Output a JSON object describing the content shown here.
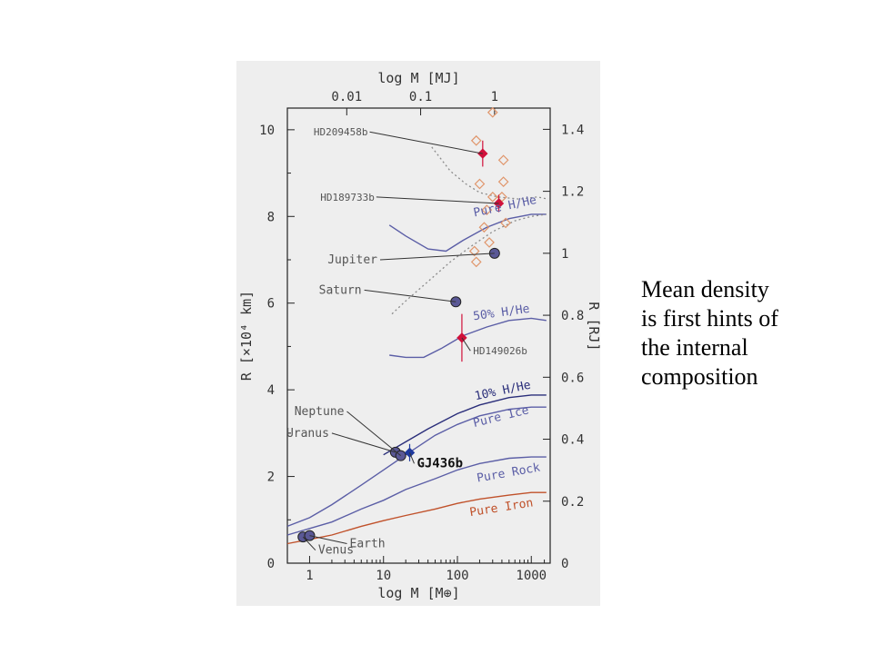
{
  "caption": {
    "lines": [
      "Mean density",
      "is first hints of",
      "the internal",
      "composition"
    ]
  },
  "colors": {
    "panel_bg": "#eeeeee",
    "axis": "#222222",
    "model_blue": "#5b5ea6",
    "model_dark_blue": "#2a2e7a",
    "iron": "#c0512a",
    "planet_marker": "#5a5896",
    "exoplanet_red": "#d0103a",
    "exoplanet_blue": "#1f3a9e",
    "hollow_diamond": "#e0956a",
    "dotted": "#8a8a8a"
  },
  "chart_data": {
    "type": "line",
    "xlabel": "log M [M⊕]",
    "xlabel_top": "log M [MJ]",
    "ylabel": "R [×10⁴ km]",
    "ylabel_right": "R [RJ]",
    "x_scale": "log",
    "xlim": [
      0.5,
      1800
    ],
    "ylim": [
      0,
      10.5
    ],
    "x_ticks": [
      {
        "value": 1,
        "label": "1"
      },
      {
        "value": 10,
        "label": "10"
      },
      {
        "value": 100,
        "label": "100"
      },
      {
        "value": 1000,
        "label": "1000"
      }
    ],
    "x_ticks_top": [
      {
        "value": 3.18,
        "label": "0.01"
      },
      {
        "value": 31.8,
        "label": "0.1"
      },
      {
        "value": 318,
        "label": "1"
      }
    ],
    "y_ticks": [
      {
        "value": 0,
        "label": "0"
      },
      {
        "value": 2,
        "label": "2"
      },
      {
        "value": 4,
        "label": "4"
      },
      {
        "value": 6,
        "label": "6"
      },
      {
        "value": 8,
        "label": "8"
      },
      {
        "value": 10,
        "label": "10"
      }
    ],
    "y_ticks_right": [
      {
        "value": 0,
        "label": "0"
      },
      {
        "value": 1.43,
        "label": "0.2"
      },
      {
        "value": 2.86,
        "label": "0.4"
      },
      {
        "value": 4.29,
        "label": "0.6"
      },
      {
        "value": 5.72,
        "label": "0.8"
      },
      {
        "value": 7.15,
        "label": "1"
      },
      {
        "value": 8.58,
        "label": "1.2"
      },
      {
        "value": 10.01,
        "label": "1.4"
      }
    ],
    "series": [
      {
        "name": "Pure H/He",
        "style": "solid",
        "color": "#5b5ea6",
        "points": [
          [
            12,
            7.8
          ],
          [
            20,
            7.55
          ],
          [
            40,
            7.25
          ],
          [
            70,
            7.2
          ],
          [
            120,
            7.45
          ],
          [
            250,
            7.75
          ],
          [
            500,
            7.95
          ],
          [
            1000,
            8.05
          ],
          [
            1600,
            8.05
          ]
        ]
      },
      {
        "name": "50% H/He",
        "style": "solid",
        "color": "#5b5ea6",
        "points": [
          [
            12,
            4.8
          ],
          [
            20,
            4.75
          ],
          [
            35,
            4.75
          ],
          [
            60,
            4.95
          ],
          [
            120,
            5.25
          ],
          [
            250,
            5.45
          ],
          [
            500,
            5.6
          ],
          [
            1000,
            5.65
          ],
          [
            1600,
            5.6
          ]
        ]
      },
      {
        "name": "10% H/He",
        "style": "solid",
        "color": "#2a2e7a",
        "points": [
          [
            10,
            2.5
          ],
          [
            20,
            2.8
          ],
          [
            40,
            3.1
          ],
          [
            100,
            3.45
          ],
          [
            200,
            3.65
          ],
          [
            500,
            3.82
          ],
          [
            1000,
            3.88
          ],
          [
            1600,
            3.88
          ]
        ]
      },
      {
        "name": "Pure Ice",
        "style": "solid",
        "color": "#5b5ea6",
        "points": [
          [
            0.5,
            0.85
          ],
          [
            1,
            1.05
          ],
          [
            2,
            1.35
          ],
          [
            5,
            1.8
          ],
          [
            10,
            2.15
          ],
          [
            20,
            2.5
          ],
          [
            50,
            2.95
          ],
          [
            100,
            3.2
          ],
          [
            200,
            3.4
          ],
          [
            500,
            3.55
          ],
          [
            1000,
            3.6
          ],
          [
            1600,
            3.6
          ]
        ]
      },
      {
        "name": "Pure Rock",
        "style": "solid",
        "color": "#5b5ea6",
        "points": [
          [
            0.5,
            0.65
          ],
          [
            1,
            0.8
          ],
          [
            2,
            0.95
          ],
          [
            5,
            1.25
          ],
          [
            10,
            1.45
          ],
          [
            20,
            1.7
          ],
          [
            50,
            1.95
          ],
          [
            100,
            2.15
          ],
          [
            200,
            2.3
          ],
          [
            500,
            2.42
          ],
          [
            1000,
            2.45
          ],
          [
            1600,
            2.45
          ]
        ]
      },
      {
        "name": "Pure Iron",
        "style": "solid",
        "color": "#c0512a",
        "points": [
          [
            0.5,
            0.45
          ],
          [
            1,
            0.55
          ],
          [
            2,
            0.65
          ],
          [
            5,
            0.85
          ],
          [
            10,
            0.98
          ],
          [
            20,
            1.1
          ],
          [
            50,
            1.25
          ],
          [
            100,
            1.38
          ],
          [
            200,
            1.48
          ],
          [
            500,
            1.57
          ],
          [
            1000,
            1.63
          ],
          [
            1600,
            1.63
          ]
        ]
      },
      {
        "name": "",
        "style": "dotted",
        "color": "#8a8a8a",
        "points": [
          [
            13,
            5.75
          ],
          [
            20,
            6.05
          ],
          [
            40,
            6.5
          ],
          [
            80,
            6.95
          ],
          [
            150,
            7.3
          ],
          [
            300,
            7.65
          ],
          [
            600,
            7.9
          ],
          [
            1000,
            8.0
          ],
          [
            1600,
            8.05
          ]
        ]
      },
      {
        "name": "",
        "style": "dotted",
        "color": "#8a8a8a",
        "points": [
          [
            45,
            9.6
          ],
          [
            80,
            9.05
          ],
          [
            130,
            8.75
          ],
          [
            200,
            8.55
          ],
          [
            350,
            8.45
          ],
          [
            700,
            8.4
          ],
          [
            1200,
            8.45
          ],
          [
            1700,
            8.4
          ]
        ]
      }
    ],
    "series_labels": [
      {
        "text": "Pure H/He",
        "x": 450,
        "y": 8.15,
        "color": "#5b5ea6",
        "rotate": -12
      },
      {
        "text": "50% H/He",
        "x": 400,
        "y": 5.7,
        "color": "#5b5ea6",
        "rotate": -8
      },
      {
        "text": "10% H/He",
        "x": 420,
        "y": 3.9,
        "color": "#2a2e7a",
        "rotate": -12
      },
      {
        "text": "Pure Ice",
        "x": 400,
        "y": 3.3,
        "color": "#5b5ea6",
        "rotate": -14
      },
      {
        "text": "Pure Rock",
        "x": 500,
        "y": 2.0,
        "color": "#5b5ea6",
        "rotate": -10
      },
      {
        "text": "Pure Iron",
        "x": 400,
        "y": 1.2,
        "color": "#c0512a",
        "rotate": -9
      }
    ],
    "planets": [
      {
        "name": "Venus",
        "mass": 0.815,
        "radius": 0.605,
        "label_x": 1.2,
        "label_y": 0.3
      },
      {
        "name": "Earth",
        "mass": 1.0,
        "radius": 0.637,
        "label_x": 3.2,
        "label_y": 0.45
      },
      {
        "name": "Uranus",
        "mass": 14.5,
        "radius": 2.56,
        "label_x": 2.0,
        "label_y": 3.0
      },
      {
        "name": "Neptune",
        "mass": 17.1,
        "radius": 2.48,
        "label_x": 3.2,
        "label_y": 3.5
      },
      {
        "name": "Saturn",
        "mass": 95.2,
        "radius": 6.03,
        "label_x": 5.5,
        "label_y": 6.3
      },
      {
        "name": "Jupiter",
        "mass": 318,
        "radius": 7.15,
        "label_x": 9.0,
        "label_y": 7.0
      }
    ],
    "exoplanets": [
      {
        "name": "HD209458b",
        "mass": 220,
        "radius": 9.45,
        "err": 0.3,
        "color": "#d0103a",
        "label_x": 6.5,
        "label_y": 9.95
      },
      {
        "name": "HD189733b",
        "mass": 363,
        "radius": 8.3,
        "err": 0.2,
        "color": "#d0103a",
        "label_x": 8.0,
        "label_y": 8.45
      },
      {
        "name": "HD149026b",
        "mass": 115,
        "radius": 5.2,
        "err": 0.55,
        "color": "#d0103a",
        "label_x": 150,
        "label_y": 4.9
      },
      {
        "name": "GJ436b",
        "mass": 22.6,
        "radius": 2.55,
        "err": 0.2,
        "color": "#1f3a9e",
        "label_x": 26,
        "label_y": 2.3
      }
    ],
    "hollow_points": [
      [
        300,
        10.4
      ],
      [
        180,
        9.75
      ],
      [
        420,
        9.3
      ],
      [
        420,
        8.8
      ],
      [
        200,
        8.75
      ],
      [
        300,
        8.45
      ],
      [
        400,
        8.45
      ],
      [
        250,
        8.15
      ],
      [
        450,
        7.85
      ],
      [
        230,
        7.75
      ],
      [
        270,
        7.4
      ],
      [
        170,
        7.2
      ],
      [
        180,
        6.95
      ]
    ]
  }
}
